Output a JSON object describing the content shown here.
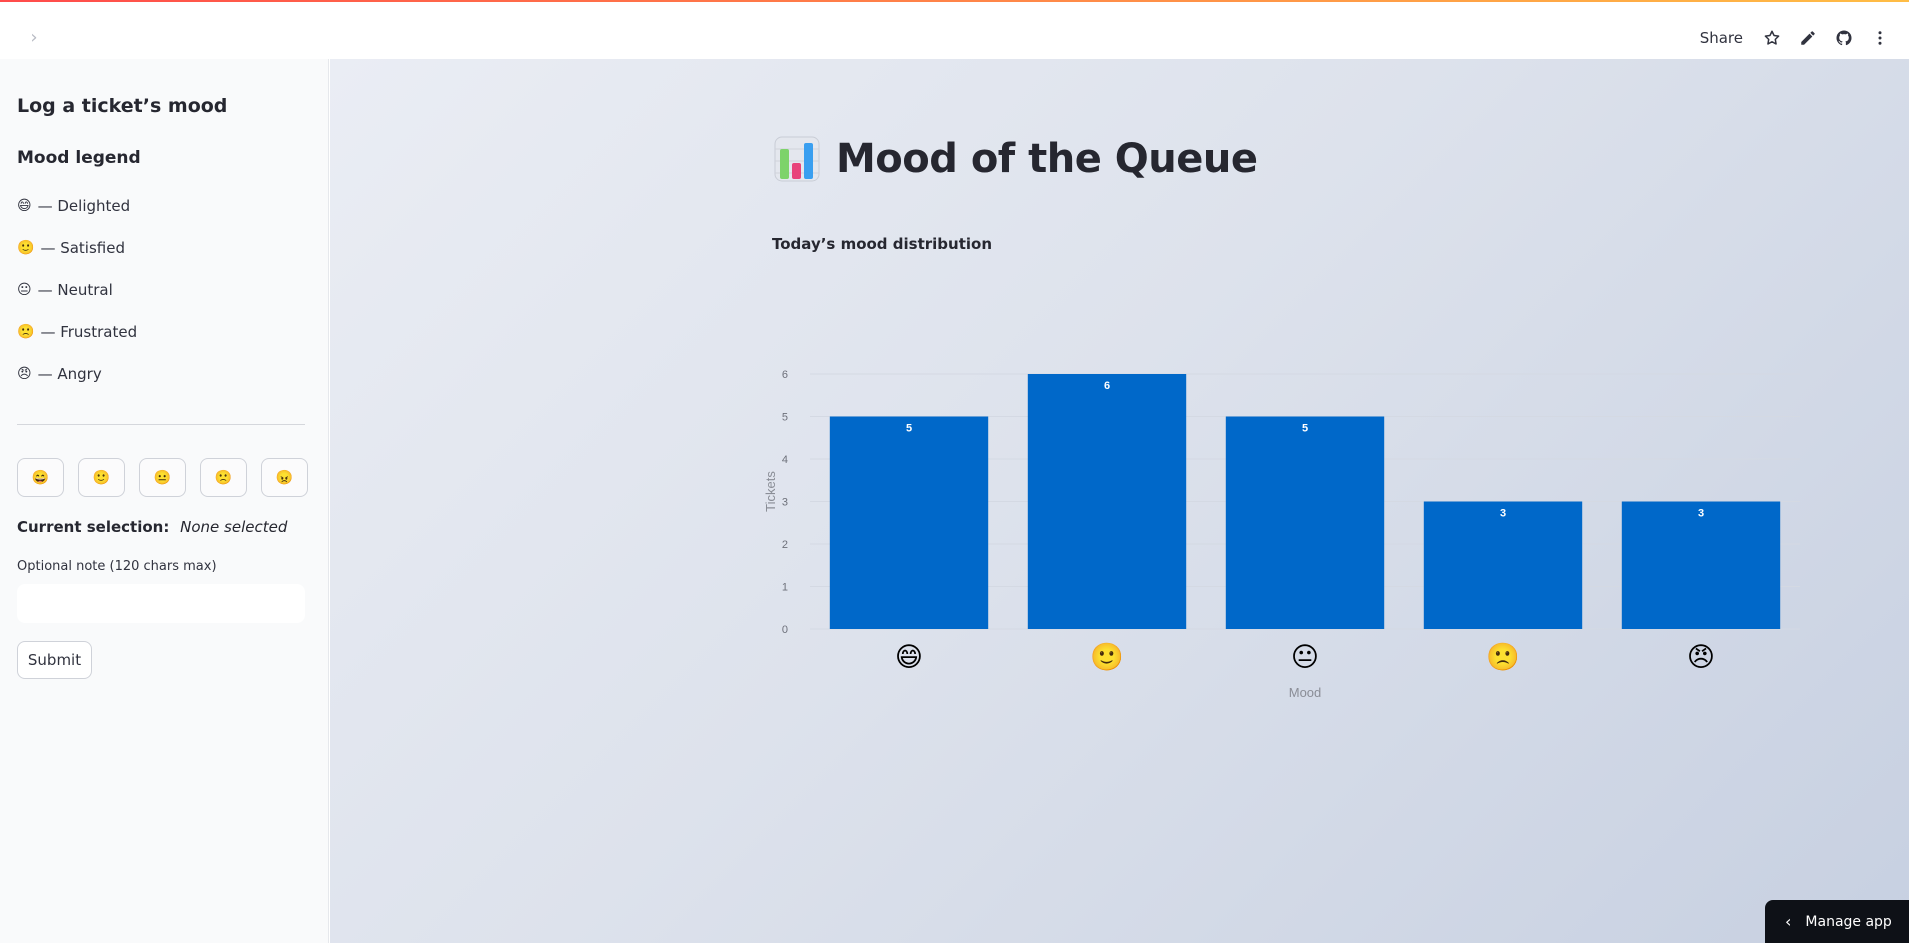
{
  "header": {
    "share_label": "Share",
    "icons": [
      "chevron-right-icon",
      "star-icon",
      "pencil-icon",
      "github-icon",
      "more-vertical-icon"
    ],
    "accent_colors": [
      "#ff4b4b",
      "#ffbd45"
    ]
  },
  "sidebar": {
    "title": "Log a ticket’s mood",
    "legend_title": "Mood legend",
    "legend": [
      {
        "emoji": "😄",
        "label": "— Delighted"
      },
      {
        "emoji": "🙂",
        "label": "— Satisfied"
      },
      {
        "emoji": "😐",
        "label": "— Neutral"
      },
      {
        "emoji": "🙁",
        "label": "— Frustrated"
      },
      {
        "emoji": "😠",
        "label": "— Angry"
      }
    ],
    "mood_buttons": [
      "😄",
      "🙂",
      "😐",
      "🙁",
      "😠"
    ],
    "current_selection_label": "Current selection:",
    "current_selection_value": "None selected",
    "note_label": "Optional note (120 chars max)",
    "note_value": "",
    "submit_label": "Submit"
  },
  "main": {
    "title": "Mood of the Queue",
    "title_icon": "bar-chart-emoji-icon",
    "chart_subtitle": "Today’s mood distribution"
  },
  "chart_data": {
    "type": "bar",
    "categories": [
      "😄",
      "🙂",
      "😐",
      "🙁",
      "😠"
    ],
    "values": [
      5,
      6,
      5,
      3,
      3
    ],
    "xlabel": "Mood",
    "ylabel": "Tickets",
    "ylim": [
      0,
      6
    ],
    "yticks": [
      0,
      1,
      2,
      3,
      4,
      5,
      6
    ],
    "grid": true,
    "bar_color": "#0068c9",
    "data_labels": true
  },
  "footer": {
    "manage_label": "Manage app"
  }
}
